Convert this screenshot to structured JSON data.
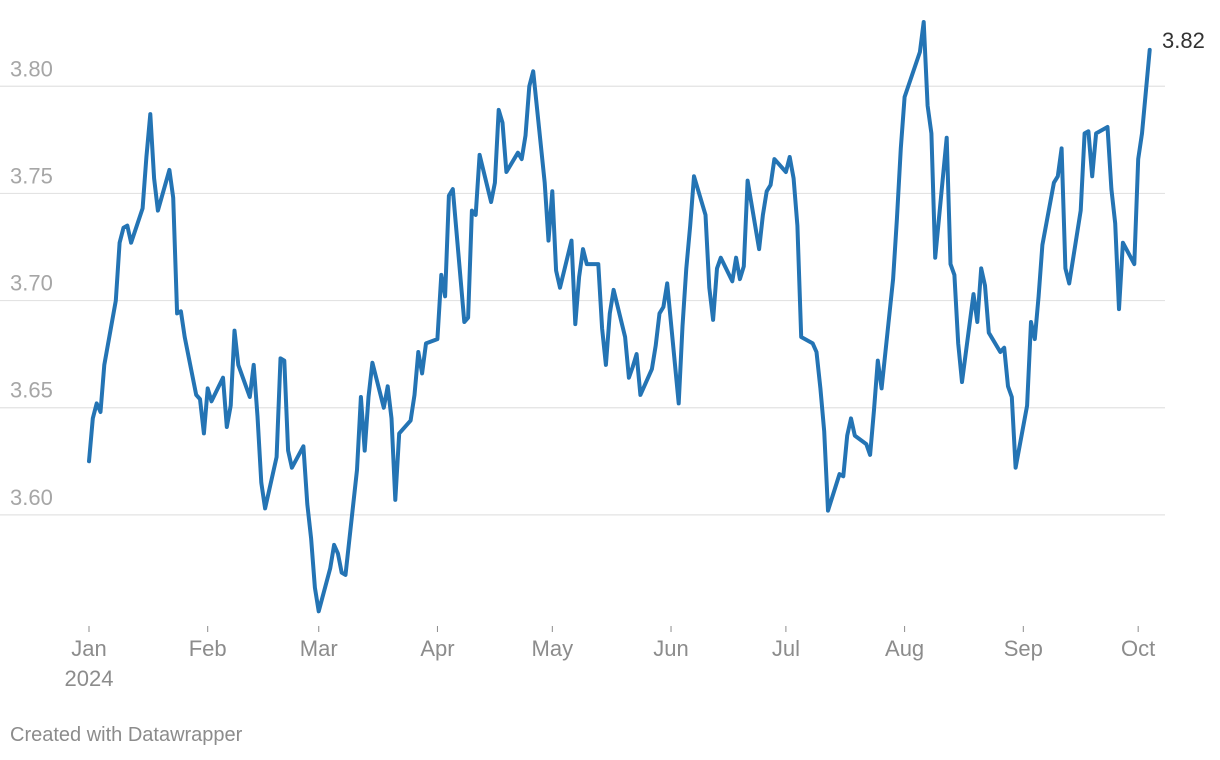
{
  "chart_data": {
    "type": "line",
    "title": "",
    "xlabel": "",
    "ylabel": "",
    "ylim": [
      3.55,
      3.83
    ],
    "grid": true,
    "yticks": [
      3.6,
      3.65,
      3.7,
      3.75,
      3.8
    ],
    "ytick_labels": [
      "3.60",
      "3.65",
      "3.70",
      "3.75",
      "3.80"
    ],
    "xticks": [
      {
        "day": 0,
        "label": "Jan",
        "sublabel": "2024"
      },
      {
        "day": 31,
        "label": "Feb"
      },
      {
        "day": 60,
        "label": "Mar"
      },
      {
        "day": 91,
        "label": "Apr"
      },
      {
        "day": 121,
        "label": "May"
      },
      {
        "day": 152,
        "label": "Jun"
      },
      {
        "day": 182,
        "label": "Jul"
      },
      {
        "day": 213,
        "label": "Aug"
      },
      {
        "day": 244,
        "label": "Sep"
      },
      {
        "day": 274,
        "label": "Oct"
      }
    ],
    "x_range_days": [
      0,
      275
    ],
    "series": [
      {
        "name": "value",
        "color": "#2474b4",
        "end_label": "3.82",
        "points": [
          [
            0,
            3.625
          ],
          [
            1,
            3.645
          ],
          [
            2,
            3.652
          ],
          [
            3,
            3.648
          ],
          [
            4,
            3.67
          ],
          [
            7,
            3.7
          ],
          [
            8,
            3.727
          ],
          [
            9,
            3.734
          ],
          [
            10,
            3.735
          ],
          [
            11,
            3.727
          ],
          [
            14,
            3.743
          ],
          [
            15,
            3.767
          ],
          [
            16,
            3.787
          ],
          [
            17,
            3.757
          ],
          [
            18,
            3.742
          ],
          [
            21,
            3.761
          ],
          [
            22,
            3.748
          ],
          [
            23,
            3.694
          ],
          [
            24,
            3.695
          ],
          [
            25,
            3.683
          ],
          [
            28,
            3.656
          ],
          [
            29,
            3.654
          ],
          [
            30,
            3.638
          ],
          [
            31,
            3.659
          ],
          [
            32,
            3.653
          ],
          [
            35,
            3.664
          ],
          [
            36,
            3.641
          ],
          [
            37,
            3.651
          ],
          [
            38,
            3.686
          ],
          [
            39,
            3.67
          ],
          [
            42,
            3.655
          ],
          [
            43,
            3.67
          ],
          [
            44,
            3.646
          ],
          [
            45,
            3.615
          ],
          [
            46,
            3.603
          ],
          [
            49,
            3.627
          ],
          [
            50,
            3.673
          ],
          [
            51,
            3.672
          ],
          [
            52,
            3.63
          ],
          [
            53,
            3.622
          ],
          [
            56,
            3.632
          ],
          [
            57,
            3.605
          ],
          [
            58,
            3.589
          ],
          [
            59,
            3.566
          ],
          [
            60,
            3.555
          ],
          [
            63,
            3.575
          ],
          [
            64,
            3.586
          ],
          [
            65,
            3.582
          ],
          [
            66,
            3.573
          ],
          [
            67,
            3.572
          ],
          [
            70,
            3.621
          ],
          [
            71,
            3.655
          ],
          [
            72,
            3.63
          ],
          [
            73,
            3.655
          ],
          [
            74,
            3.671
          ],
          [
            77,
            3.65
          ],
          [
            78,
            3.66
          ],
          [
            79,
            3.645
          ],
          [
            80,
            3.607
          ],
          [
            81,
            3.638
          ],
          [
            84,
            3.644
          ],
          [
            85,
            3.656
          ],
          [
            86,
            3.676
          ],
          [
            87,
            3.666
          ],
          [
            88,
            3.68
          ],
          [
            91,
            3.682
          ],
          [
            92,
            3.712
          ],
          [
            93,
            3.702
          ],
          [
            94,
            3.749
          ],
          [
            95,
            3.752
          ],
          [
            98,
            3.69
          ],
          [
            99,
            3.692
          ],
          [
            100,
            3.742
          ],
          [
            101,
            3.74
          ],
          [
            102,
            3.768
          ],
          [
            105,
            3.746
          ],
          [
            106,
            3.755
          ],
          [
            107,
            3.789
          ],
          [
            108,
            3.783
          ],
          [
            109,
            3.76
          ],
          [
            112,
            3.769
          ],
          [
            113,
            3.766
          ],
          [
            114,
            3.777
          ],
          [
            115,
            3.8
          ],
          [
            116,
            3.807
          ],
          [
            119,
            3.755
          ],
          [
            120,
            3.728
          ],
          [
            121,
            3.751
          ],
          [
            122,
            3.714
          ],
          [
            123,
            3.706
          ],
          [
            126,
            3.728
          ],
          [
            127,
            3.689
          ],
          [
            128,
            3.711
          ],
          [
            129,
            3.724
          ],
          [
            130,
            3.717
          ],
          [
            133,
            3.717
          ],
          [
            134,
            3.687
          ],
          [
            135,
            3.67
          ],
          [
            136,
            3.694
          ],
          [
            137,
            3.705
          ],
          [
            140,
            3.683
          ],
          [
            141,
            3.664
          ],
          [
            142,
            3.669
          ],
          [
            143,
            3.675
          ],
          [
            144,
            3.656
          ],
          [
            147,
            3.668
          ],
          [
            148,
            3.679
          ],
          [
            149,
            3.694
          ],
          [
            150,
            3.697
          ],
          [
            151,
            3.708
          ],
          [
            154,
            3.652
          ],
          [
            155,
            3.688
          ],
          [
            156,
            3.715
          ],
          [
            157,
            3.735
          ],
          [
            158,
            3.758
          ],
          [
            161,
            3.74
          ],
          [
            162,
            3.706
          ],
          [
            163,
            3.691
          ],
          [
            164,
            3.715
          ],
          [
            165,
            3.72
          ],
          [
            168,
            3.709
          ],
          [
            169,
            3.72
          ],
          [
            170,
            3.71
          ],
          [
            171,
            3.716
          ],
          [
            172,
            3.756
          ],
          [
            175,
            3.724
          ],
          [
            176,
            3.74
          ],
          [
            177,
            3.751
          ],
          [
            178,
            3.754
          ],
          [
            179,
            3.766
          ],
          [
            182,
            3.76
          ],
          [
            183,
            3.767
          ],
          [
            184,
            3.757
          ],
          [
            185,
            3.735
          ],
          [
            186,
            3.683
          ],
          [
            189,
            3.68
          ],
          [
            190,
            3.676
          ],
          [
            191,
            3.659
          ],
          [
            192,
            3.639
          ],
          [
            193,
            3.602
          ],
          [
            196,
            3.619
          ],
          [
            197,
            3.618
          ],
          [
            198,
            3.637
          ],
          [
            199,
            3.645
          ],
          [
            200,
            3.637
          ],
          [
            203,
            3.633
          ],
          [
            204,
            3.628
          ],
          [
            205,
            3.649
          ],
          [
            206,
            3.672
          ],
          [
            207,
            3.659
          ],
          [
            210,
            3.71
          ],
          [
            211,
            3.738
          ],
          [
            212,
            3.771
          ],
          [
            213,
            3.795
          ],
          [
            217,
            3.816
          ],
          [
            218,
            3.83
          ],
          [
            219,
            3.791
          ],
          [
            220,
            3.778
          ],
          [
            221,
            3.72
          ],
          [
            224,
            3.776
          ],
          [
            225,
            3.717
          ],
          [
            226,
            3.712
          ],
          [
            227,
            3.68
          ],
          [
            228,
            3.662
          ],
          [
            231,
            3.703
          ],
          [
            232,
            3.69
          ],
          [
            233,
            3.715
          ],
          [
            234,
            3.707
          ],
          [
            235,
            3.685
          ],
          [
            238,
            3.676
          ],
          [
            239,
            3.678
          ],
          [
            240,
            3.66
          ],
          [
            241,
            3.655
          ],
          [
            242,
            3.622
          ],
          [
            245,
            3.651
          ],
          [
            246,
            3.69
          ],
          [
            247,
            3.682
          ],
          [
            248,
            3.702
          ],
          [
            249,
            3.726
          ],
          [
            252,
            3.755
          ],
          [
            253,
            3.758
          ],
          [
            254,
            3.771
          ],
          [
            255,
            3.715
          ],
          [
            256,
            3.708
          ],
          [
            259,
            3.742
          ],
          [
            260,
            3.778
          ],
          [
            261,
            3.779
          ],
          [
            262,
            3.758
          ],
          [
            263,
            3.778
          ],
          [
            266,
            3.781
          ],
          [
            267,
            3.752
          ],
          [
            268,
            3.736
          ],
          [
            269,
            3.696
          ],
          [
            270,
            3.727
          ],
          [
            273,
            3.717
          ],
          [
            274,
            3.766
          ],
          [
            275,
            3.778
          ],
          [
            277,
            3.817
          ]
        ]
      }
    ]
  },
  "credit": "Created with Datawrapper"
}
